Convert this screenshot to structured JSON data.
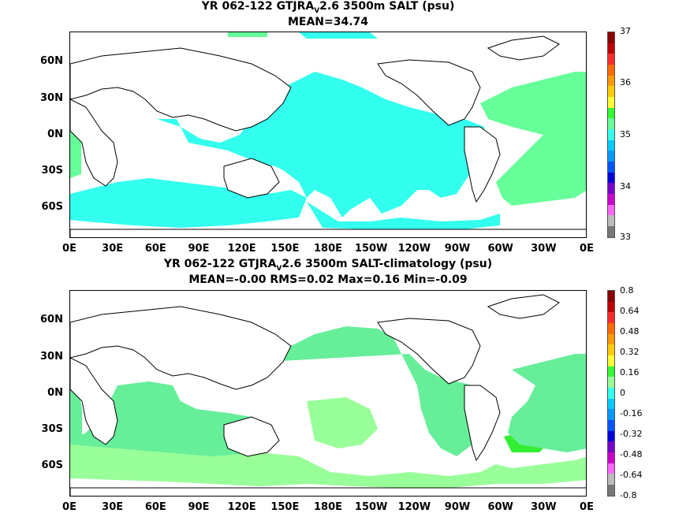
{
  "panel1": {
    "title_pre": "YR 062-122 GTJRA",
    "title_sub": "V",
    "title_post": "2.6 3500m SALT (psu)",
    "stats": "MEAN=34.74",
    "colorbar_labels": [
      "37",
      "36",
      "35",
      "34",
      "33"
    ],
    "colorbar_colors": [
      "#8b0000",
      "#c00000",
      "#ff2a2a",
      "#ff6a00",
      "#ff9a00",
      "#ffcc00",
      "#ffff33",
      "#33ff33",
      "#66ff99",
      "#33ffee",
      "#00ccff",
      "#0099ff",
      "#0055ff",
      "#0000dd",
      "#7a00cc",
      "#cc00cc",
      "#ff66ff",
      "#bbbbbb",
      "#777777"
    ]
  },
  "panel2": {
    "title_pre": "YR 062-122 GTJRA",
    "title_sub": "V",
    "title_post": "2.6 3500m SALT-climatology (psu)",
    "stats": "MEAN=-0.00   RMS=0.02   Max=0.16   Min=-0.09",
    "colorbar_labels": [
      "0.8",
      "0.64",
      "0.48",
      "0.32",
      "0.16",
      "0",
      "-0.16",
      "-0.32",
      "-0.48",
      "-0.64",
      "-0.8"
    ],
    "colorbar_colors": [
      "#8b0000",
      "#c00000",
      "#ff2a2a",
      "#ff6a00",
      "#ff9a00",
      "#ffcc00",
      "#ffff33",
      "#33ff33",
      "#99ff99",
      "#33ffee",
      "#00ccff",
      "#0099ff",
      "#0055ff",
      "#0000dd",
      "#7a00cc",
      "#cc00cc",
      "#ff66ff",
      "#bbbbbb",
      "#777777"
    ]
  },
  "lat_labels": [
    "60N",
    "30N",
    "0N",
    "30S",
    "60S"
  ],
  "lon_labels": [
    "0E",
    "30E",
    "60E",
    "90E",
    "120E",
    "150E",
    "180E",
    "150W",
    "120W",
    "90W",
    "60W",
    "30W",
    "0E"
  ],
  "colors": {
    "panel1_fill": "#33ffee",
    "panel1_atlantic": "#66ff99",
    "panel2_fill": "#66ee99",
    "panel2_light": "#99ff99",
    "panel2_bright": "#33ee33"
  }
}
